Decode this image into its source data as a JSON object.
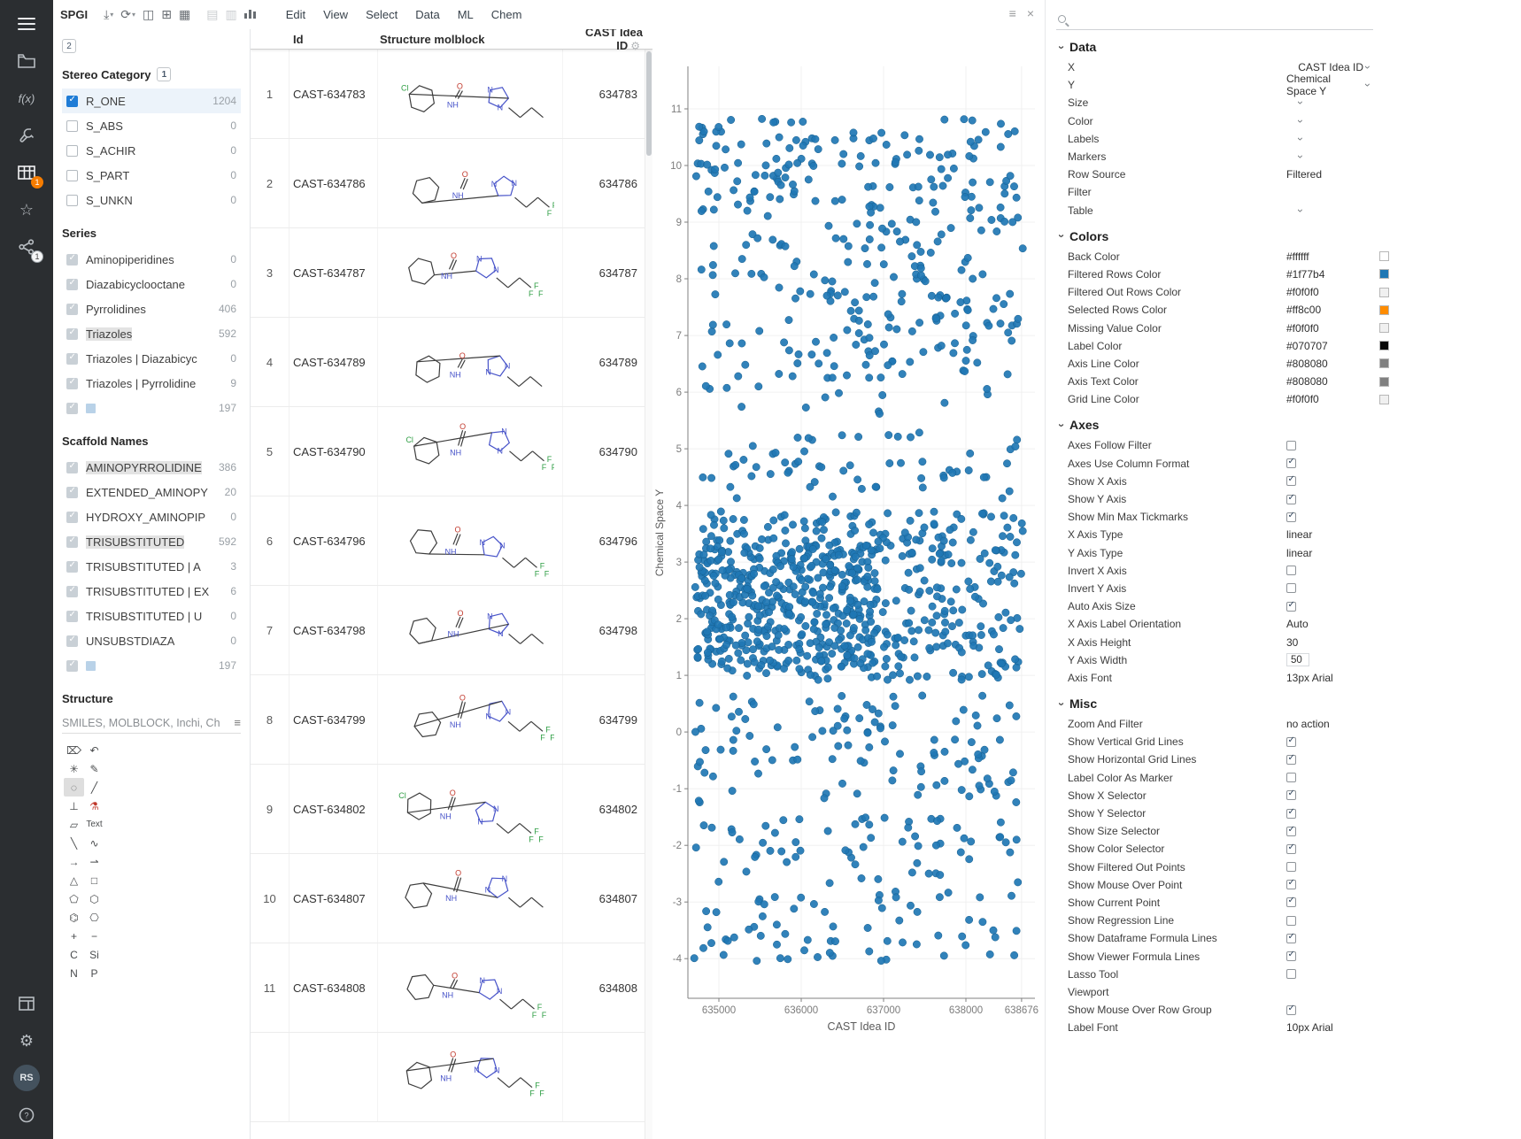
{
  "toolbar": {
    "app_name": "SPGI",
    "icons": [
      {
        "name": "download-icon",
        "glyph": "⤓",
        "caret": true
      },
      {
        "name": "sync-icon",
        "glyph": "⟳",
        "caret": true
      },
      {
        "name": "layout-split-icon",
        "glyph": "◫"
      },
      {
        "name": "layout-grid-icon",
        "glyph": "⊞"
      },
      {
        "name": "layout-tile-icon",
        "glyph": "▦"
      },
      {
        "name": "sep"
      },
      {
        "name": "add-rows-icon",
        "glyph": "▤",
        "disabled": true
      },
      {
        "name": "add-columns-icon",
        "glyph": "▥",
        "disabled": true
      },
      {
        "name": "add-viewer-icon",
        "glyph": "bars"
      },
      {
        "name": "sep"
      }
    ],
    "menus": [
      "Edit",
      "View",
      "Select",
      "Data",
      "ML",
      "Chem"
    ]
  },
  "rail": {
    "avatar": "RS",
    "table_badge": "1",
    "share_badge": "1"
  },
  "viewer_icons": {
    "menu": "≡",
    "close": "×"
  },
  "filters": {
    "active_count": "2",
    "groups": [
      {
        "title": "Stereo Category",
        "badge": "1",
        "style": "blue",
        "items": [
          {
            "label": "R_ONE",
            "count": "1204",
            "checked": true,
            "selected": true
          },
          {
            "label": "S_ABS",
            "count": "0",
            "checked": false
          },
          {
            "label": "S_ACHIR",
            "count": "0",
            "checked": false
          },
          {
            "label": "S_PART",
            "count": "0",
            "checked": false
          },
          {
            "label": "S_UNKN",
            "count": "0",
            "checked": false
          }
        ]
      },
      {
        "title": "Series",
        "style": "gray",
        "items": [
          {
            "label": "Aminopiperidines",
            "count": "0",
            "checked": true
          },
          {
            "label": "Diazabicyclooctane",
            "count": "0",
            "checked": true
          },
          {
            "label": "Pyrrolidines",
            "count": "406",
            "checked": true
          },
          {
            "label": "Triazoles",
            "count": "592",
            "checked": true,
            "highlight": true
          },
          {
            "label": "Triazoles | Diazabicyc",
            "count": "0",
            "checked": true
          },
          {
            "label": "Triazoles | Pyrrolidine",
            "count": "9",
            "checked": true
          },
          {
            "label": "",
            "count": "197",
            "checked": true,
            "swatch": true
          }
        ]
      },
      {
        "title": "Scaffold Names",
        "style": "gray",
        "items": [
          {
            "label": "AMINOPYRROLIDINE",
            "count": "386",
            "checked": true,
            "highlight": true
          },
          {
            "label": "EXTENDED_AMINOPY",
            "count": "20",
            "checked": true
          },
          {
            "label": "HYDROXY_AMINOPIP",
            "count": "0",
            "checked": true
          },
          {
            "label": "TRISUBSTITUTED",
            "count": "592",
            "checked": true,
            "highlight": true
          },
          {
            "label": "TRISUBSTITUTED | A",
            "count": "3",
            "checked": true
          },
          {
            "label": "TRISUBSTITUTED | EX",
            "count": "6",
            "checked": true
          },
          {
            "label": "TRISUBSTITUTED | U",
            "count": "0",
            "checked": true
          },
          {
            "label": "UNSUBSTDIAZA",
            "count": "0",
            "checked": true
          },
          {
            "label": "",
            "count": "197",
            "checked": true,
            "swatch": true
          }
        ]
      }
    ],
    "structure": {
      "title": "Structure",
      "query": "SMILES, MOLBLOCK, Inchi, Ch"
    },
    "sketcher_tools": [
      {
        "name": "trash-icon",
        "glyph": "⌦"
      },
      {
        "name": "undo-icon",
        "glyph": "↶"
      },
      {
        "name": "clean-icon",
        "glyph": "✳"
      },
      {
        "name": "edit-icon",
        "glyph": "✎"
      },
      {
        "name": "lasso-icon",
        "glyph": "◌",
        "selected": true
      },
      {
        "name": "single-bond-icon",
        "glyph": "╱"
      },
      {
        "name": "template-icon",
        "glyph": "⊥"
      },
      {
        "name": "reaction-icon",
        "glyph": "⚗",
        "red": true
      },
      {
        "name": "eraser-icon",
        "glyph": "▱"
      },
      {
        "name": "text-tool",
        "glyph": "Text",
        "small": true
      },
      {
        "name": "down-bond-icon",
        "glyph": "╲"
      },
      {
        "name": "chain-icon",
        "glyph": "∿"
      },
      {
        "name": "arrow-icon",
        "glyph": "→"
      },
      {
        "name": "retro-arrow-icon",
        "glyph": "⇀"
      },
      {
        "name": "triangle-ring-icon",
        "glyph": "△"
      },
      {
        "name": "square-ring-icon",
        "glyph": "□"
      },
      {
        "name": "pentagon-ring-icon",
        "glyph": "⬠"
      },
      {
        "name": "hexagon-ring-icon",
        "glyph": "⬡"
      },
      {
        "name": "benzene-icon",
        "glyph": "⌬"
      },
      {
        "name": "cyclohexane-icon",
        "glyph": "⎔"
      },
      {
        "name": "charge-plus-icon",
        "glyph": "+"
      },
      {
        "name": "charge-minus-icon",
        "glyph": "−"
      },
      {
        "name": "atom-c",
        "glyph": "C"
      },
      {
        "name": "atom-si",
        "glyph": "Si"
      },
      {
        "name": "atom-n",
        "glyph": "N"
      },
      {
        "name": "atom-p",
        "glyph": "P"
      }
    ]
  },
  "table": {
    "columns": [
      "Id",
      "Structure molblock",
      "CAST Idea ID"
    ],
    "rows": [
      {
        "num": "1",
        "id": "CAST-634783",
        "cast_idea_id": "634783"
      },
      {
        "num": "2",
        "id": "CAST-634786",
        "cast_idea_id": "634786"
      },
      {
        "num": "3",
        "id": "CAST-634787",
        "cast_idea_id": "634787"
      },
      {
        "num": "4",
        "id": "CAST-634789",
        "cast_idea_id": "634789"
      },
      {
        "num": "5",
        "id": "CAST-634790",
        "cast_idea_id": "634790"
      },
      {
        "num": "6",
        "id": "CAST-634796",
        "cast_idea_id": "634796"
      },
      {
        "num": "7",
        "id": "CAST-634798",
        "cast_idea_id": "634798"
      },
      {
        "num": "8",
        "id": "CAST-634799",
        "cast_idea_id": "634799"
      },
      {
        "num": "9",
        "id": "CAST-634802",
        "cast_idea_id": "634802"
      },
      {
        "num": "10",
        "id": "CAST-634807",
        "cast_idea_id": "634807"
      },
      {
        "num": "11",
        "id": "CAST-634808",
        "cast_idea_id": "634808"
      },
      {
        "num": "",
        "id": "",
        "cast_idea_id": "",
        "partial": true
      }
    ]
  },
  "chart_data": {
    "type": "scatter",
    "xlabel": "CAST Idea ID",
    "ylabel": "Chemical Space Y",
    "xlim": [
      634624,
      638838
    ],
    "ylim": [
      -4.7,
      11.75
    ],
    "x_ticks": [
      635000,
      636000,
      637000,
      638000,
      638676
    ],
    "y_ticks": [
      -4,
      -3,
      -2,
      -1,
      0,
      1,
      2,
      3,
      4,
      5,
      6,
      7,
      8,
      9,
      10,
      11
    ],
    "grid": true,
    "legend": "none",
    "marker_color": "#1f77b4",
    "approx_point_count": 1300,
    "clusters": [
      {
        "n": 170,
        "x": [
          634700,
          638700
        ],
        "y": [
          5.6,
          10.9
        ]
      },
      {
        "n": 130,
        "x": [
          636300,
          638700
        ],
        "y": [
          6.2,
          10.6
        ]
      },
      {
        "n": 40,
        "x": [
          634750,
          636200
        ],
        "y": [
          9.3,
          10.9
        ]
      },
      {
        "n": 60,
        "x": [
          634750,
          638650
        ],
        "y": [
          4.1,
          5.3
        ]
      },
      {
        "n": 430,
        "x": [
          634700,
          638700
        ],
        "y": [
          0.9,
          3.9
        ]
      },
      {
        "n": 280,
        "x": [
          634700,
          636900
        ],
        "y": [
          1.1,
          3.3
        ]
      },
      {
        "n": 110,
        "x": [
          634700,
          638650
        ],
        "y": [
          -1.3,
          0.7
        ]
      },
      {
        "n": 130,
        "x": [
          634700,
          638650
        ],
        "y": [
          -4.05,
          -1.5
        ]
      }
    ]
  },
  "properties": {
    "search_placeholder": "",
    "sections": [
      {
        "title": "Data",
        "rows": [
          {
            "label": "X",
            "type": "select",
            "value": "CAST Idea ID"
          },
          {
            "label": "Y",
            "type": "select",
            "value": "Chemical Space Y"
          },
          {
            "label": "Size",
            "type": "select",
            "value": ""
          },
          {
            "label": "Color",
            "type": "select",
            "value": ""
          },
          {
            "label": "Labels",
            "type": "select",
            "value": ""
          },
          {
            "label": "Markers",
            "type": "select",
            "value": ""
          },
          {
            "label": "Row Source",
            "type": "text",
            "value": "Filtered"
          },
          {
            "label": "Filter",
            "type": "text",
            "value": ""
          },
          {
            "label": "Table",
            "type": "select",
            "value": ""
          }
        ]
      },
      {
        "title": "Colors",
        "rows": [
          {
            "label": "Back Color",
            "type": "color",
            "value": "#ffffff"
          },
          {
            "label": "Filtered Rows Color",
            "type": "color",
            "value": "#1f77b4"
          },
          {
            "label": "Filtered Out Rows Color",
            "type": "color",
            "value": "#f0f0f0"
          },
          {
            "label": "Selected Rows Color",
            "type": "color",
            "value": "#ff8c00"
          },
          {
            "label": "Missing Value Color",
            "type": "color",
            "value": "#f0f0f0"
          },
          {
            "label": "Label Color",
            "type": "color",
            "value": "#070707"
          },
          {
            "label": "Axis Line Color",
            "type": "color",
            "value": "#808080"
          },
          {
            "label": "Axis Text Color",
            "type": "color",
            "value": "#808080"
          },
          {
            "label": "Grid Line Color",
            "type": "color",
            "value": "#f0f0f0"
          }
        ]
      },
      {
        "title": "Axes",
        "rows": [
          {
            "label": "Axes Follow Filter",
            "type": "check",
            "value": false
          },
          {
            "label": "Axes Use Column Format",
            "type": "check",
            "value": true
          },
          {
            "label": "Show X Axis",
            "type": "check",
            "value": true
          },
          {
            "label": "Show Y Axis",
            "type": "check",
            "value": true
          },
          {
            "label": "Show Min Max Tickmarks",
            "type": "check",
            "value": true
          },
          {
            "label": "X Axis Type",
            "type": "text",
            "value": "linear"
          },
          {
            "label": "Y Axis Type",
            "type": "text",
            "value": "linear"
          },
          {
            "label": "Invert X Axis",
            "type": "check",
            "value": false
          },
          {
            "label": "Invert Y Axis",
            "type": "check",
            "value": false
          },
          {
            "label": "Auto Axis Size",
            "type": "check",
            "value": true
          },
          {
            "label": "X Axis Label Orientation",
            "type": "text",
            "value": "Auto"
          },
          {
            "label": "X Axis Height",
            "type": "text",
            "value": "30"
          },
          {
            "label": "Y Axis Width",
            "type": "input",
            "value": "50"
          },
          {
            "label": "Axis Font",
            "type": "text",
            "value": "13px Arial"
          }
        ]
      },
      {
        "title": "Misc",
        "rows": [
          {
            "label": "Zoom And Filter",
            "type": "text",
            "value": "no action"
          },
          {
            "label": "Show Vertical Grid Lines",
            "type": "check",
            "value": true
          },
          {
            "label": "Show Horizontal Grid Lines",
            "type": "check",
            "value": true
          },
          {
            "label": "Label Color As Marker",
            "type": "check",
            "value": false
          },
          {
            "label": "Show X Selector",
            "type": "check",
            "value": true
          },
          {
            "label": "Show Y Selector",
            "type": "check",
            "value": true
          },
          {
            "label": "Show Size Selector",
            "type": "check",
            "value": true
          },
          {
            "label": "Show Color Selector",
            "type": "check",
            "value": true
          },
          {
            "label": "Show Filtered Out Points",
            "type": "check",
            "value": false
          },
          {
            "label": "Show Mouse Over Point",
            "type": "check",
            "value": true
          },
          {
            "label": "Show Current Point",
            "type": "check",
            "value": true
          },
          {
            "label": "Show Regression Line",
            "type": "check",
            "value": false
          },
          {
            "label": "Show Dataframe Formula Lines",
            "type": "check",
            "value": true
          },
          {
            "label": "Show Viewer Formula Lines",
            "type": "check",
            "value": true
          },
          {
            "label": "Lasso Tool",
            "type": "check",
            "value": false
          },
          {
            "label": "Viewport",
            "type": "text",
            "value": ""
          },
          {
            "label": "Show Mouse Over Row Group",
            "type": "check",
            "value": true
          },
          {
            "label": "Label Font",
            "type": "text",
            "value": "10px Arial"
          }
        ]
      }
    ]
  }
}
